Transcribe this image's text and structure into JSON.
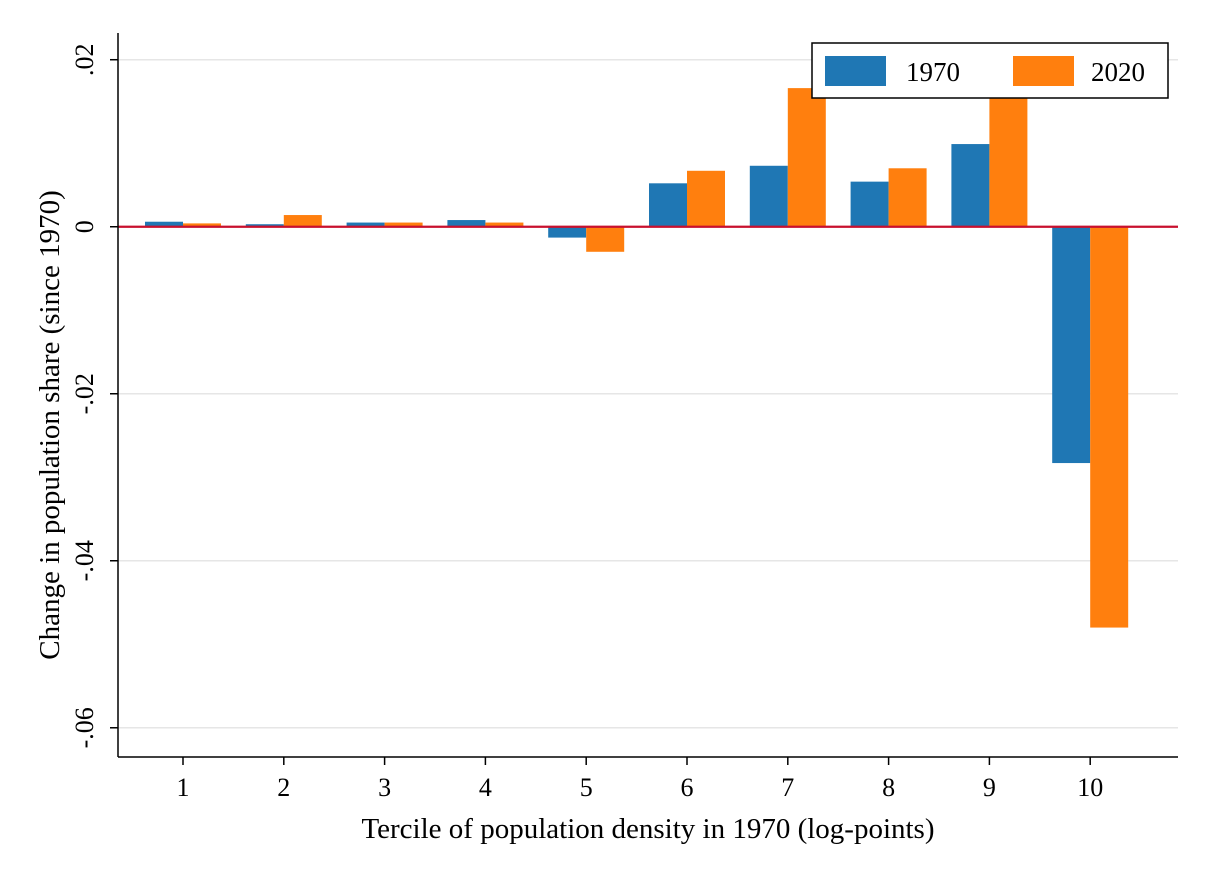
{
  "chart_data": {
    "type": "bar",
    "title": "",
    "xlabel": "Tercile of population density in 1970 (log-points)",
    "ylabel": "Change in population share (since 1970)",
    "categories": [
      "1",
      "2",
      "3",
      "4",
      "5",
      "6",
      "7",
      "8",
      "9",
      "10"
    ],
    "series": [
      {
        "name": "1970",
        "color": "#1f77b4",
        "values": [
          0.0006,
          0.0003,
          0.0005,
          0.0008,
          -0.0013,
          0.0052,
          0.0073,
          0.0054,
          0.0099,
          -0.0283
        ]
      },
      {
        "name": "2020",
        "color": "#ff7f0e",
        "values": [
          0.0004,
          0.0014,
          0.0005,
          0.0005,
          -0.003,
          0.0067,
          0.0166,
          0.007,
          0.0176,
          -0.048
        ]
      }
    ],
    "ylim": [
      -0.0635,
      0.0232
    ],
    "yticks": [
      {
        "value": 0.02,
        "label": ".02"
      },
      {
        "value": 0,
        "label": "0"
      },
      {
        "value": -0.02,
        "label": "-.02"
      },
      {
        "value": -0.04,
        "label": "-.04"
      },
      {
        "value": -0.06,
        "label": "-.06"
      }
    ],
    "grid": true,
    "zero_line_color": "#c8102e",
    "legend_position": "top-right"
  }
}
